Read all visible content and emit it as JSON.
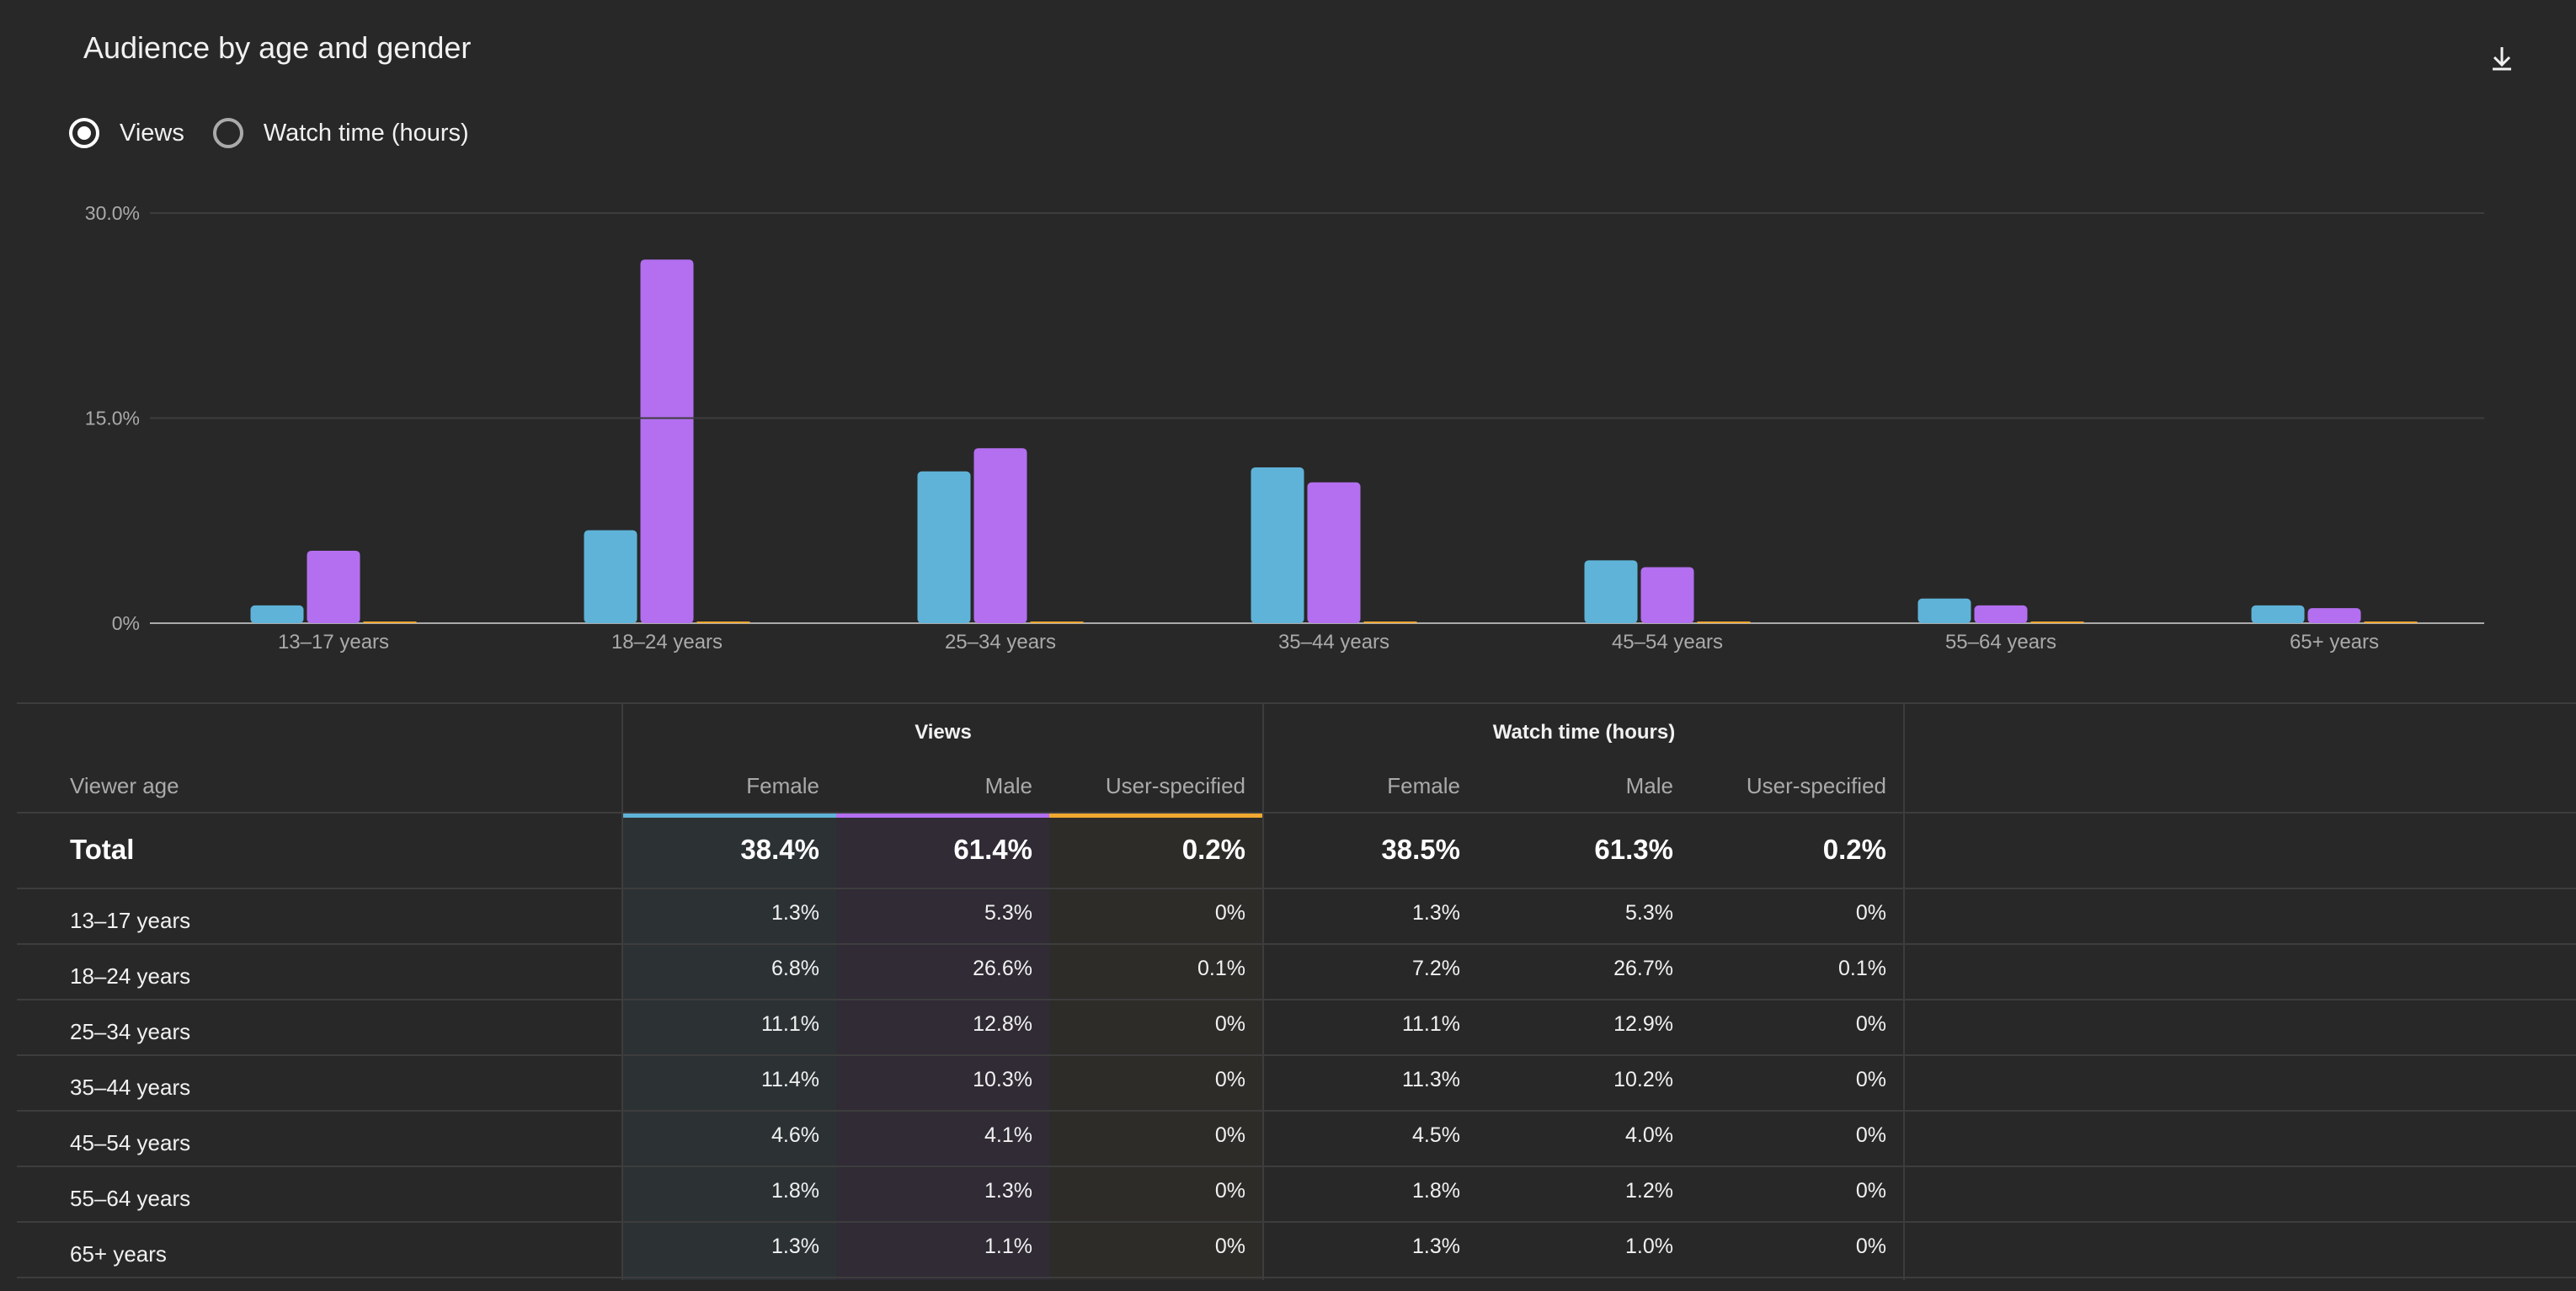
{
  "title": "Audience by age and gender",
  "download_icon": "download-icon",
  "metric_options": [
    {
      "label": "Views",
      "selected": true
    },
    {
      "label": "Watch time (hours)",
      "selected": false
    }
  ],
  "colors": {
    "female": "#5fb3d8",
    "male": "#b36ff0",
    "user_specified": "#f0a830",
    "background": "#282828",
    "grid": "#3d3d3d"
  },
  "chart_data": {
    "type": "bar",
    "categories": [
      "13–17 years",
      "18–24 years",
      "25–34 years",
      "35–44 years",
      "45–54 years",
      "55–64 years",
      "65+ years"
    ],
    "series": [
      {
        "name": "Female",
        "values": [
          1.3,
          6.8,
          11.1,
          11.4,
          4.6,
          1.8,
          1.3
        ]
      },
      {
        "name": "Male",
        "values": [
          5.3,
          26.6,
          12.8,
          10.3,
          4.1,
          1.3,
          1.1
        ]
      },
      {
        "name": "User-specified",
        "values": [
          0,
          0.1,
          0,
          0,
          0,
          0,
          0
        ]
      }
    ],
    "yticks": [
      "0%",
      "15.0%",
      "30.0%"
    ],
    "ylim": [
      0,
      30
    ],
    "grid": true
  },
  "table": {
    "age_header": "Viewer age",
    "groups": [
      "Views",
      "Watch time (hours)"
    ],
    "columns": [
      "Female",
      "Male",
      "User-specified",
      "Female",
      "Male",
      "User-specified"
    ],
    "total": {
      "label": "Total",
      "values": [
        "38.4%",
        "61.4%",
        "0.2%",
        "38.5%",
        "61.3%",
        "0.2%"
      ]
    },
    "rows": [
      {
        "label": "13–17 years",
        "values": [
          "1.3%",
          "5.3%",
          "0%",
          "1.3%",
          "5.3%",
          "0%"
        ]
      },
      {
        "label": "18–24 years",
        "values": [
          "6.8%",
          "26.6%",
          "0.1%",
          "7.2%",
          "26.7%",
          "0.1%"
        ]
      },
      {
        "label": "25–34 years",
        "values": [
          "11.1%",
          "12.8%",
          "0%",
          "11.1%",
          "12.9%",
          "0%"
        ]
      },
      {
        "label": "35–44 years",
        "values": [
          "11.4%",
          "10.3%",
          "0%",
          "11.3%",
          "10.2%",
          "0%"
        ]
      },
      {
        "label": "45–54 years",
        "values": [
          "4.6%",
          "4.1%",
          "0%",
          "4.5%",
          "4.0%",
          "0%"
        ]
      },
      {
        "label": "55–64 years",
        "values": [
          "1.8%",
          "1.3%",
          "0%",
          "1.8%",
          "1.2%",
          "0%"
        ]
      },
      {
        "label": "65+ years",
        "values": [
          "1.3%",
          "1.1%",
          "0%",
          "1.3%",
          "1.0%",
          "0%"
        ]
      }
    ]
  }
}
